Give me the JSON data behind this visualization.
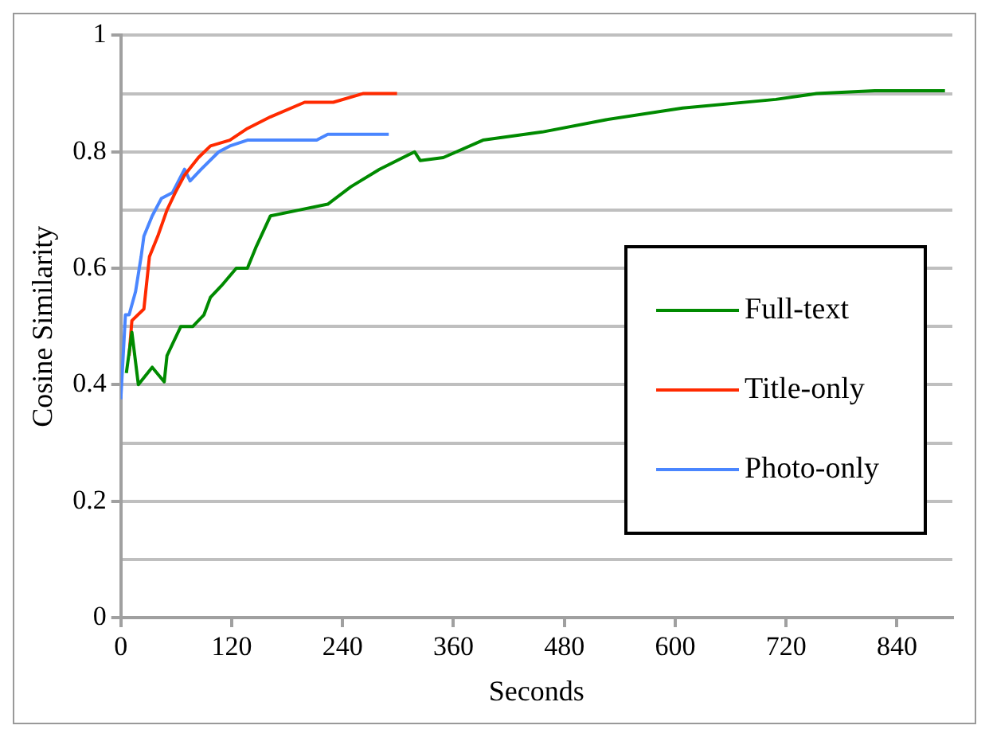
{
  "chart_data": {
    "type": "line",
    "xlabel": "Seconds",
    "ylabel": "Cosine Similarity",
    "xlim": [
      0,
      900
    ],
    "xticks": [
      0,
      120,
      240,
      360,
      480,
      600,
      720,
      840
    ],
    "ylim": [
      0,
      1
    ],
    "yticks": [
      0,
      {
        "value": 0.1,
        "label": null
      },
      0.2,
      {
        "value": 0.3,
        "label": null
      },
      0.4,
      {
        "value": 0.5,
        "label": null
      },
      0.6,
      {
        "value": 0.7,
        "label": null
      },
      0.8,
      {
        "value": 0.9,
        "label": null
      },
      1
    ],
    "grid": "y",
    "legend": "right",
    "marker": "none",
    "line_style": "solid",
    "series": [
      {
        "name": "Full-text",
        "color": "#008a00",
        "x": [
          6,
          12,
          19,
          34,
          47,
          50,
          56,
          65,
          78,
          90,
          97,
          109,
          125,
          137,
          146,
          162,
          193,
          224,
          249,
          280,
          318,
          324,
          349,
          392,
          456,
          525,
          608,
          709,
          753,
          816,
          892
        ],
        "values": [
          0.42,
          0.49,
          0.4,
          0.43,
          0.405,
          0.45,
          0.47,
          0.5,
          0.5,
          0.52,
          0.55,
          0.57,
          0.6,
          0.6,
          0.635,
          0.69,
          0.7,
          0.71,
          0.74,
          0.77,
          0.8,
          0.785,
          0.79,
          0.82,
          0.834,
          0.855,
          0.875,
          0.89,
          0.9,
          0.905,
          0.905
        ]
      },
      {
        "name": "Title-only",
        "color": "#ff2a00",
        "x": [
          9,
          12,
          25,
          31,
          40,
          50,
          59,
          69,
          84,
          97,
          118,
          137,
          162,
          199,
          230,
          262,
          299
        ],
        "values": [
          0.45,
          0.51,
          0.53,
          0.62,
          0.655,
          0.7,
          0.73,
          0.76,
          0.79,
          0.81,
          0.82,
          0.84,
          0.86,
          0.885,
          0.885,
          0.9,
          0.9
        ]
      },
      {
        "name": "Photo-only",
        "color": "#4a86ff",
        "x": [
          0,
          5,
          9,
          16,
          22,
          25,
          34,
          44,
          56,
          69,
          75,
          87,
          106,
          118,
          137,
          162,
          212,
          224,
          290
        ],
        "values": [
          0.375,
          0.52,
          0.52,
          0.56,
          0.62,
          0.655,
          0.69,
          0.72,
          0.73,
          0.77,
          0.75,
          0.77,
          0.8,
          0.81,
          0.82,
          0.82,
          0.82,
          0.83,
          0.83
        ]
      }
    ]
  }
}
